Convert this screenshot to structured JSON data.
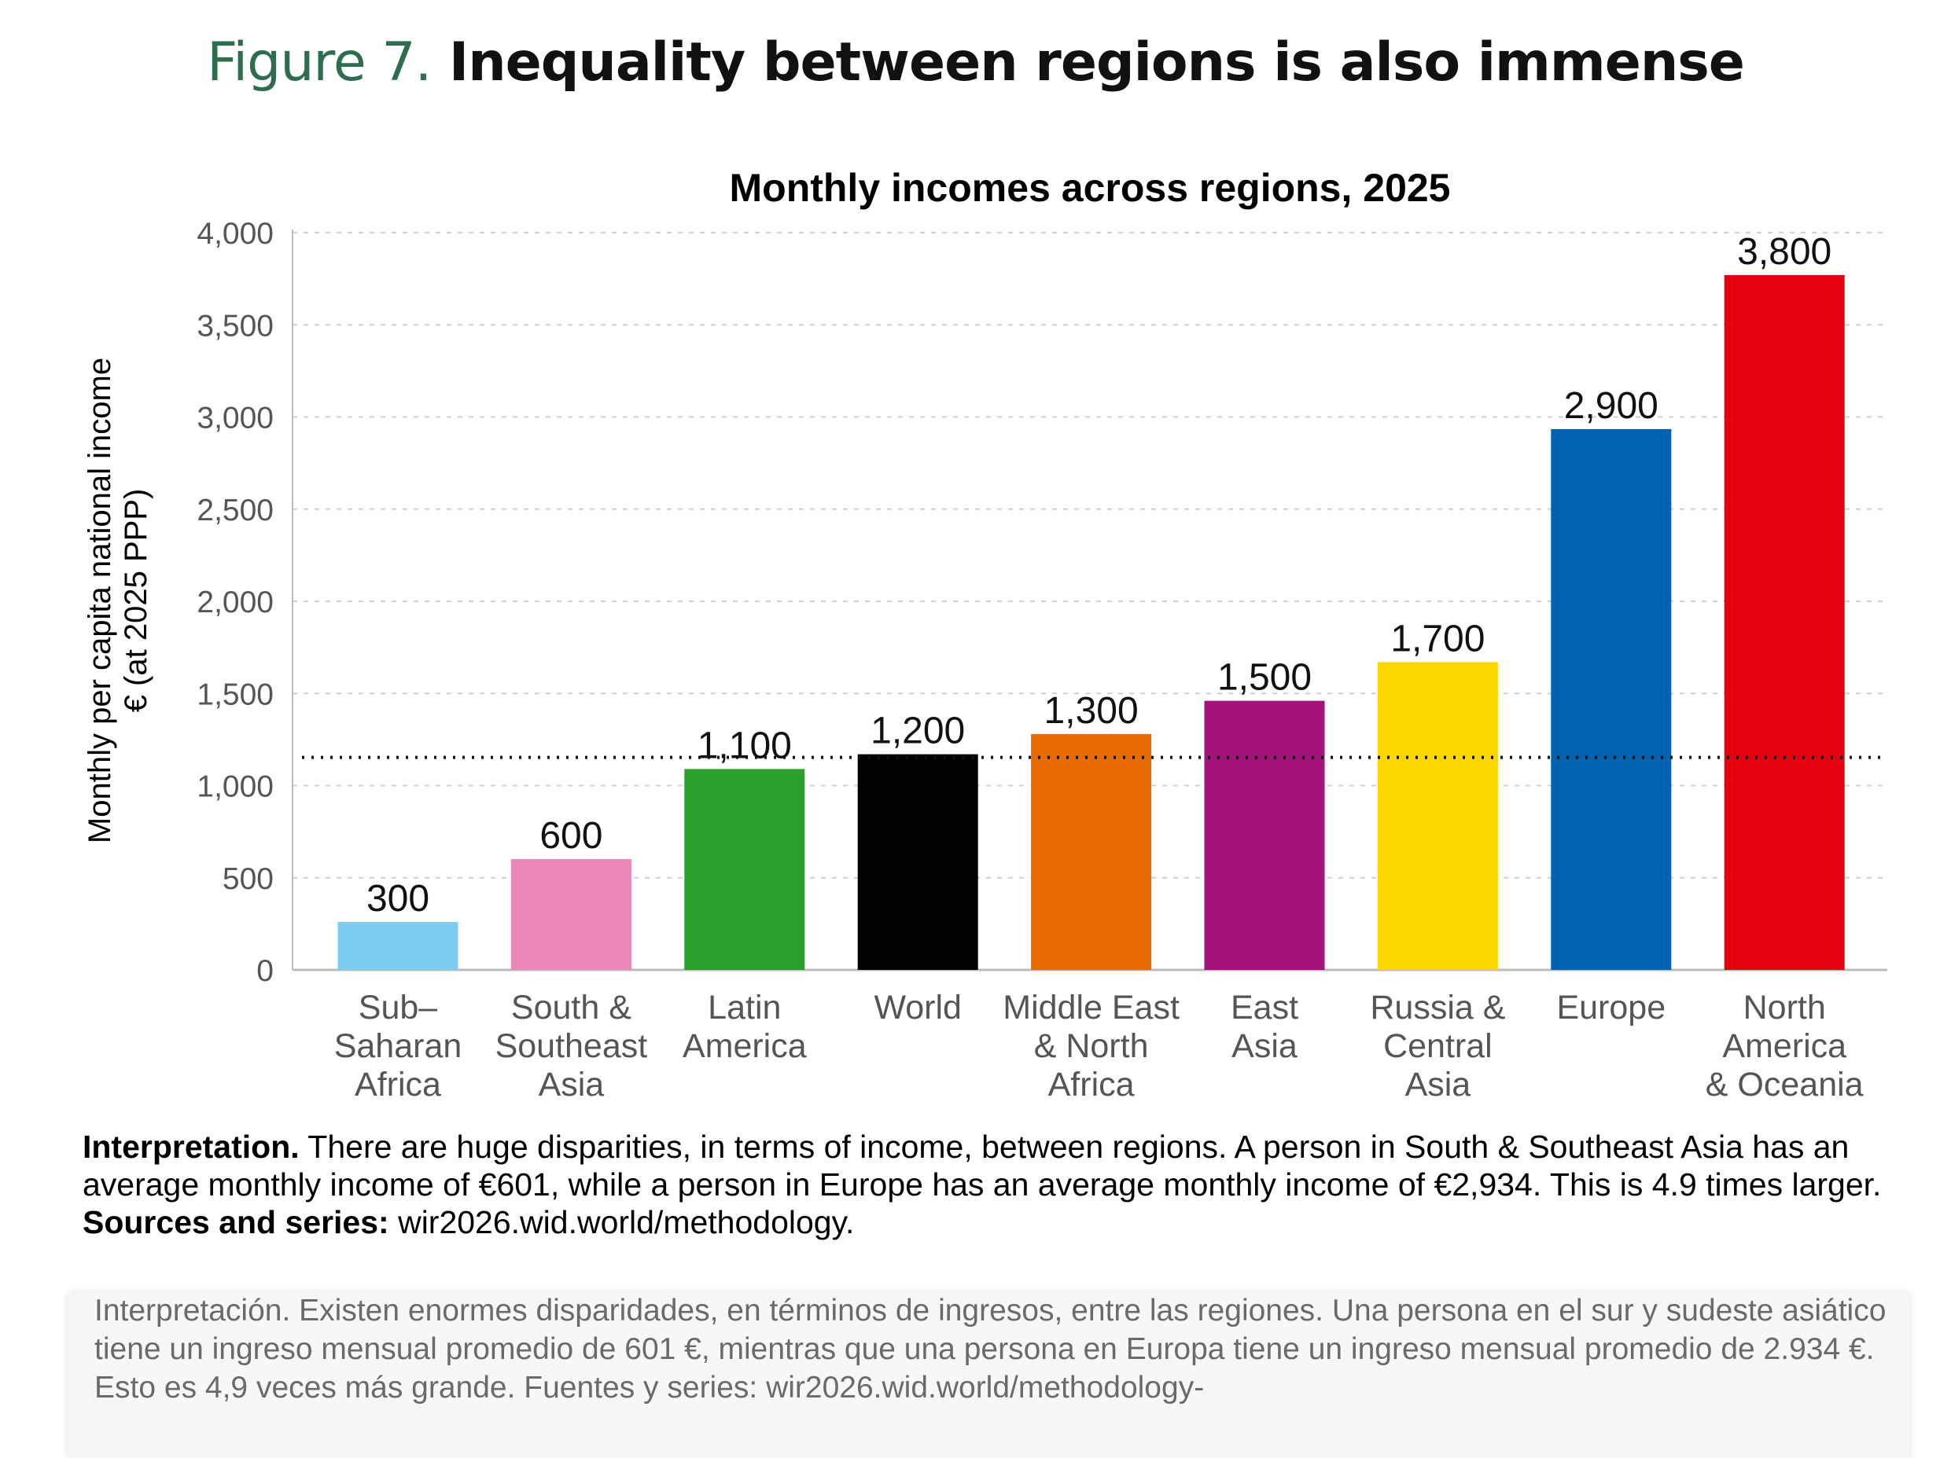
{
  "figure": {
    "number": "Figure 7.",
    "title": "Inequality between regions is also immense"
  },
  "chart_data": {
    "type": "bar",
    "title": "Monthly incomes across regions, 2025",
    "ylabel": [
      "Monthly per capita national income",
      "€ (at 2025 PPP)"
    ],
    "xlabel": "",
    "ylim": [
      0,
      4000
    ],
    "yticks": [
      0,
      500,
      1000,
      1500,
      2000,
      2500,
      3000,
      3500,
      4000
    ],
    "ytick_labels": [
      "0",
      "500",
      "1,000",
      "1,500",
      "2,000",
      "2,500",
      "3,000",
      "3,500",
      "4,000"
    ],
    "grid": "horizontal dashed",
    "categories": [
      [
        "Sub–",
        "Saharan",
        "Africa"
      ],
      [
        "South &",
        "Southeast",
        "Asia"
      ],
      [
        "Latin",
        "America"
      ],
      [
        "World"
      ],
      [
        "Middle East",
        "& North",
        "Africa"
      ],
      [
        "East",
        "Asia"
      ],
      [
        "Russia &",
        "Central",
        "Asia"
      ],
      [
        "Europe"
      ],
      [
        "North",
        "America",
        "& Oceania"
      ]
    ],
    "values": [
      260,
      601,
      1090,
      1170,
      1280,
      1460,
      1670,
      2934,
      3770
    ],
    "data_labels": [
      "300",
      "600",
      "1,100",
      "1,200",
      "1,300",
      "1,500",
      "1,700",
      "2,900",
      "3,800"
    ],
    "colors": [
      "#7fcdf1",
      "#ec87b5",
      "#2ca02c",
      "#000000",
      "#e86c00",
      "#a3117a",
      "#ffd700",
      "#0063b1",
      "#e3000f"
    ],
    "reference_line": {
      "label": "World average (dotted)",
      "value": 1170
    }
  },
  "interpretation": {
    "label": "Interpretation.",
    "text": " There are huge disparities, in terms of income, between regions. A person in South & Southeast Asia has an average monthly income of €601, while a person in Europe has an average monthly income of €2,934. This is 4.9 times larger. ",
    "sources_label": "Sources and series:",
    "sources_text": " wir2026.wid.world/methodology."
  },
  "translation": {
    "text": "Interpretación. Existen enormes disparidades, en términos de ingresos, entre las regiones. Una persona en el sur y sudeste asiático tiene un ingreso mensual promedio de 601 €, mientras que una persona en Europa tiene un ingreso mensual promedio de 2.934 €. Esto es 4,9 veces más grande. Fuentes y series: wir2026.wid.world/methodology-"
  }
}
